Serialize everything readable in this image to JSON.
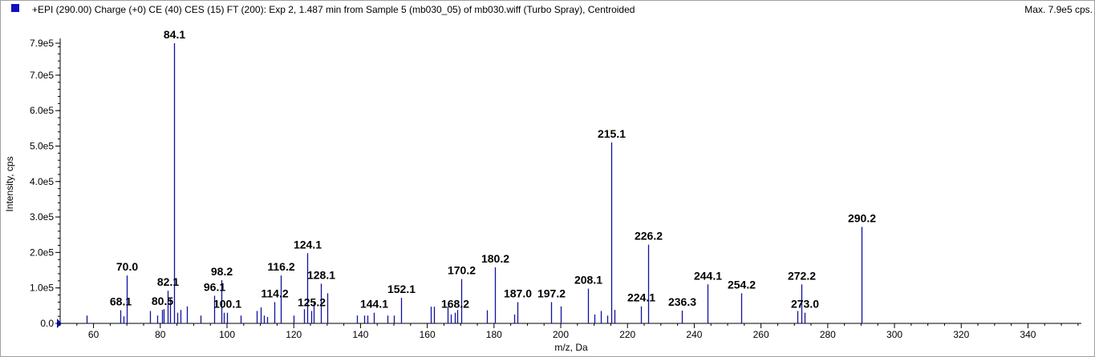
{
  "header": {
    "legend_color": "#1010c0",
    "title": "+EPI (290.00) Charge (+0) CE (40) CES (15) FT (200): Exp 2, 1.487 min from Sample 5 (mb030_05) of mb030.wiff (Turbo Spray), Centroided",
    "max_intensity": "Max. 7.9e5 cps."
  },
  "chart_data": {
    "type": "bar",
    "title": "",
    "xlabel": "m/z, Da",
    "ylabel": "Intensity, cps",
    "xlim": [
      50,
      356
    ],
    "ylim": [
      0,
      790000
    ],
    "x_ticks": [
      60,
      80,
      100,
      120,
      140,
      160,
      180,
      200,
      220,
      240,
      260,
      280,
      300,
      320,
      340
    ],
    "y_ticks": [
      {
        "value": 0,
        "label": "0.0"
      },
      {
        "value": 100000,
        "label": "1.0e5"
      },
      {
        "value": 200000,
        "label": "2.0e5"
      },
      {
        "value": 300000,
        "label": "3.0e5"
      },
      {
        "value": 400000,
        "label": "4.0e5"
      },
      {
        "value": 500000,
        "label": "5.0e5"
      },
      {
        "value": 600000,
        "label": "6.0e5"
      },
      {
        "value": 700000,
        "label": "7.0e5"
      },
      {
        "value": 790000,
        "label": "7.9e5"
      }
    ],
    "bar_color": "#1010a0",
    "peaks": [
      {
        "mz": 58.0,
        "intensity": 22000
      },
      {
        "mz": 68.1,
        "intensity": 37000,
        "label": "68.1"
      },
      {
        "mz": 69.1,
        "intensity": 20000
      },
      {
        "mz": 70.0,
        "intensity": 135000,
        "label": "70.0"
      },
      {
        "mz": 77.0,
        "intensity": 35000
      },
      {
        "mz": 79.0,
        "intensity": 22000
      },
      {
        "mz": 80.5,
        "intensity": 38000,
        "label": "80.5"
      },
      {
        "mz": 81.0,
        "intensity": 40000
      },
      {
        "mz": 82.1,
        "intensity": 92000,
        "label": "82.1"
      },
      {
        "mz": 83.0,
        "intensity": 70000
      },
      {
        "mz": 84.1,
        "intensity": 790000,
        "label": "84.1"
      },
      {
        "mz": 85.0,
        "intensity": 30000
      },
      {
        "mz": 86.0,
        "intensity": 38000
      },
      {
        "mz": 88.0,
        "intensity": 48000
      },
      {
        "mz": 92.0,
        "intensity": 22000
      },
      {
        "mz": 96.1,
        "intensity": 78000,
        "label": "96.1"
      },
      {
        "mz": 98.2,
        "intensity": 122000,
        "label": "98.2"
      },
      {
        "mz": 99.0,
        "intensity": 30000
      },
      {
        "mz": 100.1,
        "intensity": 30000,
        "label": "100.1"
      },
      {
        "mz": 104.0,
        "intensity": 22000
      },
      {
        "mz": 109.0,
        "intensity": 35000
      },
      {
        "mz": 110.0,
        "intensity": 45000
      },
      {
        "mz": 111.0,
        "intensity": 22000
      },
      {
        "mz": 112.0,
        "intensity": 18000
      },
      {
        "mz": 114.2,
        "intensity": 60000,
        "label": "114.2"
      },
      {
        "mz": 116.2,
        "intensity": 135000,
        "label": "116.2"
      },
      {
        "mz": 120.0,
        "intensity": 22000
      },
      {
        "mz": 123.0,
        "intensity": 40000
      },
      {
        "mz": 124.1,
        "intensity": 198000,
        "label": "124.1"
      },
      {
        "mz": 125.2,
        "intensity": 35000,
        "label": "125.2"
      },
      {
        "mz": 126.0,
        "intensity": 60000
      },
      {
        "mz": 128.1,
        "intensity": 112000,
        "label": "128.1"
      },
      {
        "mz": 130.0,
        "intensity": 85000
      },
      {
        "mz": 139.0,
        "intensity": 22000
      },
      {
        "mz": 141.0,
        "intensity": 22000
      },
      {
        "mz": 142.0,
        "intensity": 22000
      },
      {
        "mz": 144.1,
        "intensity": 30000,
        "label": "144.1"
      },
      {
        "mz": 148.0,
        "intensity": 22000
      },
      {
        "mz": 150.0,
        "intensity": 22000
      },
      {
        "mz": 152.1,
        "intensity": 72000,
        "label": "152.1"
      },
      {
        "mz": 161.0,
        "intensity": 47000
      },
      {
        "mz": 162.0,
        "intensity": 47000
      },
      {
        "mz": 166.0,
        "intensity": 47000
      },
      {
        "mz": 167.0,
        "intensity": 25000
      },
      {
        "mz": 168.2,
        "intensity": 30000,
        "label": "168.2"
      },
      {
        "mz": 169.0,
        "intensity": 38000
      },
      {
        "mz": 170.2,
        "intensity": 125000,
        "label": "170.2"
      },
      {
        "mz": 178.0,
        "intensity": 37000
      },
      {
        "mz": 180.2,
        "intensity": 158000,
        "label": "180.2"
      },
      {
        "mz": 186.0,
        "intensity": 25000
      },
      {
        "mz": 187.0,
        "intensity": 60000,
        "label": "187.0"
      },
      {
        "mz": 197.2,
        "intensity": 60000,
        "label": "197.2"
      },
      {
        "mz": 200.0,
        "intensity": 48000
      },
      {
        "mz": 208.1,
        "intensity": 98000,
        "label": "208.1"
      },
      {
        "mz": 210.0,
        "intensity": 25000
      },
      {
        "mz": 212.0,
        "intensity": 35000
      },
      {
        "mz": 214.0,
        "intensity": 22000
      },
      {
        "mz": 215.1,
        "intensity": 510000,
        "label": "215.1"
      },
      {
        "mz": 216.0,
        "intensity": 38000
      },
      {
        "mz": 224.1,
        "intensity": 48000,
        "label": "224.1"
      },
      {
        "mz": 226.2,
        "intensity": 222000,
        "label": "226.2"
      },
      {
        "mz": 236.3,
        "intensity": 36000,
        "label": "236.3"
      },
      {
        "mz": 244.1,
        "intensity": 110000,
        "label": "244.1"
      },
      {
        "mz": 254.2,
        "intensity": 85000,
        "label": "254.2"
      },
      {
        "mz": 271.0,
        "intensity": 35000
      },
      {
        "mz": 272.2,
        "intensity": 110000,
        "label": "272.2"
      },
      {
        "mz": 273.0,
        "intensity": 30000,
        "label": "273.0"
      },
      {
        "mz": 290.2,
        "intensity": 272000,
        "label": "290.2"
      }
    ]
  }
}
